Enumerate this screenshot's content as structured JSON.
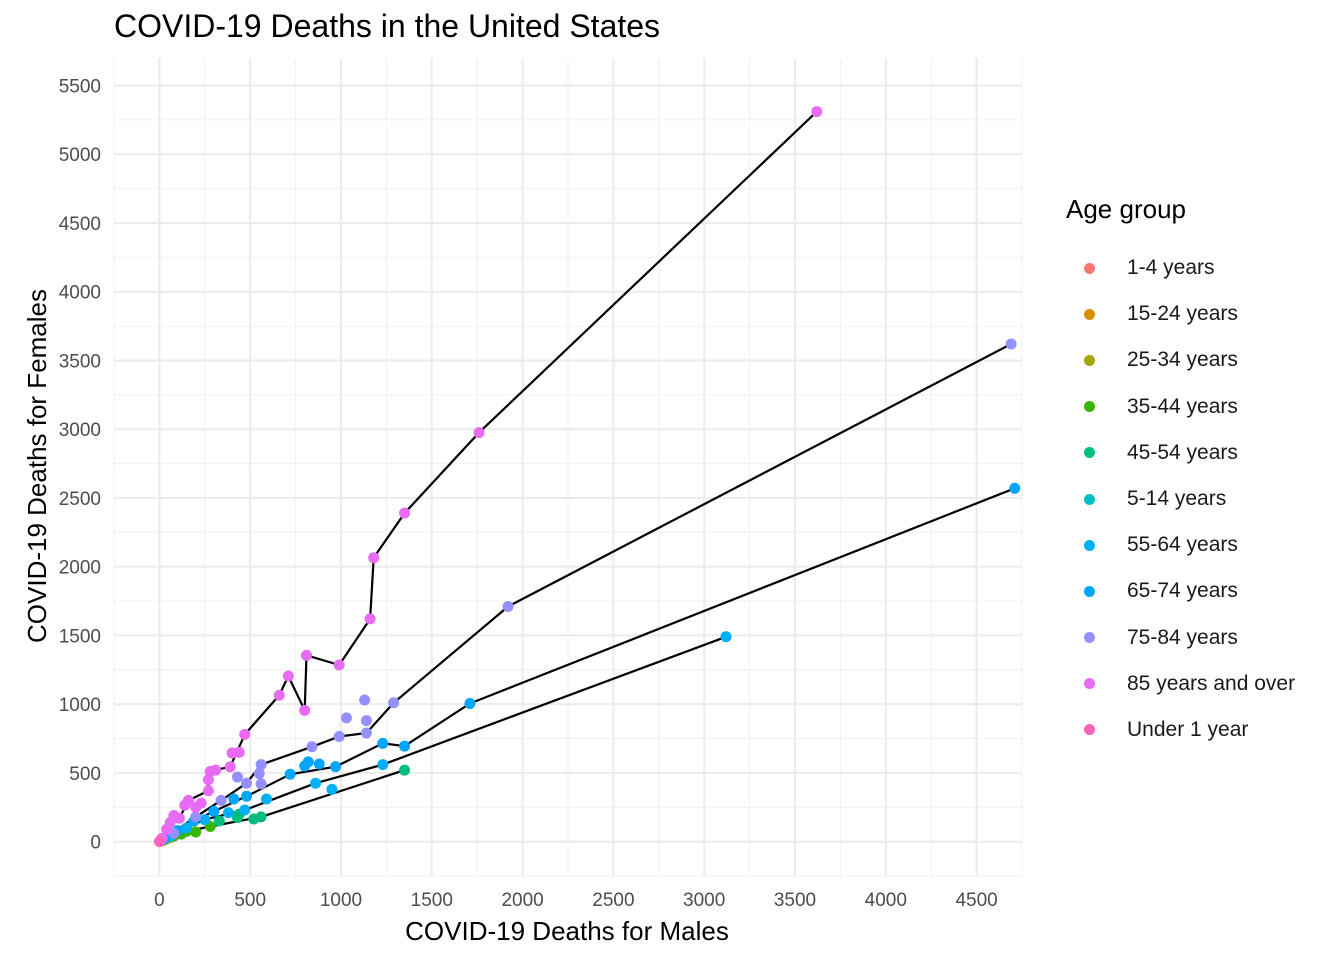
{
  "chart_data": {
    "type": "scatter",
    "title": "COVID-19 Deaths in the United States",
    "xlabel": "COVID-19 Deaths for Males",
    "ylabel": "COVID-19 Deaths for Females",
    "xlim": [
      -250,
      4750
    ],
    "ylim": [
      -250,
      5700
    ],
    "x_ticks": [
      0,
      500,
      1000,
      1500,
      2000,
      2500,
      3000,
      3500,
      4000,
      4500
    ],
    "y_ticks": [
      0,
      500,
      1000,
      1500,
      2000,
      2500,
      3000,
      3500,
      4000,
      4500,
      5000,
      5500
    ],
    "grid": true,
    "legend_title": "Age group",
    "legend_position": "right",
    "series": [
      {
        "name": "1-4 years",
        "color": "#F8766D",
        "points": [
          [
            2,
            1
          ],
          [
            3,
            2
          ],
          [
            4,
            3
          ],
          [
            1,
            1
          ],
          [
            5,
            3
          ]
        ]
      },
      {
        "name": "15-24 years",
        "color": "#D89000",
        "points": [
          [
            10,
            6
          ],
          [
            15,
            8
          ],
          [
            20,
            12
          ],
          [
            8,
            5
          ],
          [
            12,
            7
          ]
        ]
      },
      {
        "name": "25-34 years",
        "color": "#A3A500",
        "points": [
          [
            30,
            15
          ],
          [
            45,
            25
          ],
          [
            60,
            30
          ],
          [
            25,
            12
          ],
          [
            40,
            20
          ]
        ]
      },
      {
        "name": "35-44 years",
        "color": "#39B600",
        "points": [
          [
            80,
            40
          ],
          [
            150,
            75
          ],
          [
            200,
            70
          ],
          [
            280,
            110
          ],
          [
            120,
            55
          ]
        ]
      },
      {
        "name": "45-54 years",
        "color": "#00BF7D",
        "points": [
          [
            520,
            165
          ],
          [
            560,
            180
          ],
          [
            440,
            200
          ],
          [
            430,
            175
          ],
          [
            1350,
            520
          ],
          [
            330,
            150
          ]
        ]
      },
      {
        "name": "5-14 years",
        "color": "#00BFC4",
        "points": [
          [
            2,
            1
          ],
          [
            3,
            2
          ],
          [
            4,
            3
          ],
          [
            5,
            3
          ]
        ]
      },
      {
        "name": "55-64 years",
        "color": "#00B0F6",
        "points": [
          [
            3120,
            1490
          ],
          [
            1230,
            560
          ],
          [
            950,
            380
          ],
          [
            860,
            425
          ],
          [
            590,
            310
          ],
          [
            470,
            230
          ],
          [
            380,
            210
          ],
          [
            250,
            160
          ],
          [
            150,
            100
          ],
          [
            60,
            40
          ]
        ]
      },
      {
        "name": "65-74 years",
        "color": "#00A5FF",
        "points": [
          [
            4710,
            2570
          ],
          [
            1710,
            1005
          ],
          [
            1350,
            695
          ],
          [
            1230,
            715
          ],
          [
            970,
            545
          ],
          [
            880,
            565
          ],
          [
            820,
            580
          ],
          [
            800,
            550
          ],
          [
            720,
            490
          ],
          [
            480,
            330
          ],
          [
            410,
            310
          ],
          [
            300,
            220
          ],
          [
            190,
            150
          ],
          [
            100,
            80
          ],
          [
            30,
            20
          ]
        ]
      },
      {
        "name": "75-84 years",
        "color": "#9590FF",
        "points": [
          [
            4690,
            3620
          ],
          [
            1920,
            1710
          ],
          [
            1290,
            1010
          ],
          [
            1140,
            790
          ],
          [
            1140,
            880
          ],
          [
            1130,
            1030
          ],
          [
            1030,
            900
          ],
          [
            990,
            765
          ],
          [
            840,
            690
          ],
          [
            560,
            560
          ],
          [
            560,
            420
          ],
          [
            550,
            495
          ],
          [
            480,
            425
          ],
          [
            430,
            470
          ],
          [
            340,
            300
          ],
          [
            200,
            180
          ],
          [
            80,
            60
          ]
        ]
      },
      {
        "name": "85 years and over",
        "color": "#E76BF3",
        "points": [
          [
            3620,
            5310
          ],
          [
            1760,
            2975
          ],
          [
            1350,
            2390
          ],
          [
            1180,
            2065
          ],
          [
            1160,
            1620
          ],
          [
            990,
            1285
          ],
          [
            810,
            1355
          ],
          [
            800,
            955
          ],
          [
            710,
            1205
          ],
          [
            660,
            1065
          ],
          [
            470,
            780
          ],
          [
            440,
            650
          ],
          [
            400,
            645
          ],
          [
            390,
            545
          ],
          [
            310,
            520
          ],
          [
            280,
            510
          ],
          [
            270,
            450
          ],
          [
            270,
            370
          ],
          [
            230,
            280
          ],
          [
            200,
            250
          ],
          [
            160,
            300
          ],
          [
            140,
            265
          ],
          [
            110,
            170
          ],
          [
            80,
            190
          ],
          [
            60,
            140
          ],
          [
            40,
            90
          ],
          [
            15,
            25
          ]
        ]
      },
      {
        "name": "Under 1 year",
        "color": "#FF62BC",
        "points": [
          [
            1,
            1
          ],
          [
            2,
            1
          ],
          [
            3,
            2
          ],
          [
            1,
            2
          ]
        ]
      }
    ],
    "lines": [
      [
        [
          0,
          0
        ],
        [
          200,
          180
        ],
        [
          340,
          300
        ],
        [
          480,
          425
        ],
        [
          560,
          560
        ],
        [
          840,
          690
        ],
        [
          990,
          765
        ],
        [
          1140,
          790
        ],
        [
          1290,
          1010
        ],
        [
          1920,
          1710
        ],
        [
          4690,
          3620
        ]
      ],
      [
        [
          0,
          0
        ],
        [
          190,
          150
        ],
        [
          300,
          220
        ],
        [
          480,
          330
        ],
        [
          720,
          490
        ],
        [
          970,
          545
        ],
        [
          1230,
          715
        ],
        [
          1350,
          695
        ],
        [
          1710,
          1005
        ],
        [
          4710,
          2570
        ]
      ],
      [
        [
          0,
          0
        ],
        [
          150,
          100
        ],
        [
          250,
          160
        ],
        [
          470,
          230
        ],
        [
          860,
          425
        ],
        [
          1230,
          560
        ],
        [
          3120,
          1490
        ]
      ],
      [
        [
          0,
          0
        ],
        [
          150,
          75
        ],
        [
          280,
          110
        ],
        [
          560,
          180
        ],
        [
          1350,
          520
        ]
      ],
      [
        [
          0,
          0
        ],
        [
          60,
          140
        ],
        [
          110,
          170
        ],
        [
          160,
          300
        ],
        [
          270,
          370
        ],
        [
          270,
          450
        ],
        [
          310,
          520
        ],
        [
          390,
          545
        ],
        [
          470,
          780
        ],
        [
          660,
          1065
        ],
        [
          710,
          1205
        ],
        [
          800,
          955
        ],
        [
          810,
          1355
        ],
        [
          990,
          1285
        ],
        [
          1160,
          1620
        ],
        [
          1180,
          2065
        ],
        [
          1350,
          2390
        ],
        [
          1760,
          2975
        ],
        [
          3620,
          5310
        ]
      ]
    ]
  }
}
